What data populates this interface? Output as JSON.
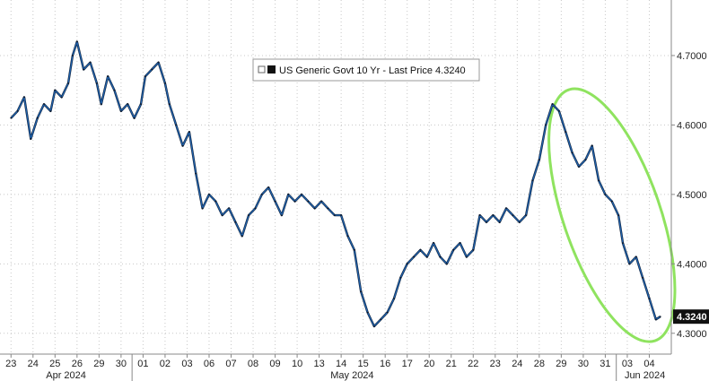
{
  "chart_data": {
    "type": "line",
    "series": [
      {
        "name": "US Generic Govt 10 Yr - Last Price 4.3240",
        "color": "#1f5fa8",
        "values": [
          [
            0.0,
            4.61
          ],
          [
            0.3,
            4.62
          ],
          [
            0.6,
            4.64
          ],
          [
            0.9,
            4.58
          ],
          [
            1.2,
            4.61
          ],
          [
            1.5,
            4.63
          ],
          [
            1.8,
            4.62
          ],
          [
            2.0,
            4.65
          ],
          [
            2.3,
            4.64
          ],
          [
            2.6,
            4.66
          ],
          [
            2.8,
            4.7
          ],
          [
            3.0,
            4.72
          ],
          [
            3.3,
            4.68
          ],
          [
            3.6,
            4.69
          ],
          [
            3.9,
            4.66
          ],
          [
            4.1,
            4.63
          ],
          [
            4.4,
            4.67
          ],
          [
            4.7,
            4.65
          ],
          [
            5.0,
            4.62
          ],
          [
            5.3,
            4.63
          ],
          [
            5.6,
            4.61
          ],
          [
            5.9,
            4.63
          ],
          [
            6.1,
            4.67
          ],
          [
            6.4,
            4.68
          ],
          [
            6.7,
            4.69
          ],
          [
            7.0,
            4.66
          ],
          [
            7.2,
            4.63
          ],
          [
            7.5,
            4.6
          ],
          [
            7.8,
            4.57
          ],
          [
            8.1,
            4.59
          ],
          [
            8.4,
            4.53
          ],
          [
            8.7,
            4.48
          ],
          [
            9.0,
            4.5
          ],
          [
            9.3,
            4.49
          ],
          [
            9.6,
            4.47
          ],
          [
            9.9,
            4.48
          ],
          [
            10.2,
            4.46
          ],
          [
            10.5,
            4.44
          ],
          [
            10.8,
            4.47
          ],
          [
            11.1,
            4.48
          ],
          [
            11.4,
            4.5
          ],
          [
            11.7,
            4.51
          ],
          [
            12.0,
            4.49
          ],
          [
            12.3,
            4.47
          ],
          [
            12.6,
            4.5
          ],
          [
            12.9,
            4.49
          ],
          [
            13.2,
            4.5
          ],
          [
            13.5,
            4.49
          ],
          [
            13.8,
            4.48
          ],
          [
            14.1,
            4.49
          ],
          [
            14.4,
            4.48
          ],
          [
            14.7,
            4.47
          ],
          [
            15.0,
            4.47
          ],
          [
            15.3,
            4.44
          ],
          [
            15.6,
            4.42
          ],
          [
            15.9,
            4.36
          ],
          [
            16.2,
            4.33
          ],
          [
            16.5,
            4.31
          ],
          [
            16.8,
            4.32
          ],
          [
            17.1,
            4.33
          ],
          [
            17.4,
            4.35
          ],
          [
            17.7,
            4.38
          ],
          [
            18.0,
            4.4
          ],
          [
            18.3,
            4.41
          ],
          [
            18.6,
            4.42
          ],
          [
            18.9,
            4.41
          ],
          [
            19.2,
            4.43
          ],
          [
            19.5,
            4.41
          ],
          [
            19.8,
            4.4
          ],
          [
            20.1,
            4.42
          ],
          [
            20.4,
            4.43
          ],
          [
            20.7,
            4.41
          ],
          [
            21.0,
            4.42
          ],
          [
            21.3,
            4.47
          ],
          [
            21.6,
            4.46
          ],
          [
            21.9,
            4.47
          ],
          [
            22.2,
            4.46
          ],
          [
            22.5,
            4.48
          ],
          [
            22.8,
            4.47
          ],
          [
            23.1,
            4.46
          ],
          [
            23.4,
            4.47
          ],
          [
            23.7,
            4.52
          ],
          [
            24.0,
            4.55
          ],
          [
            24.3,
            4.6
          ],
          [
            24.6,
            4.63
          ],
          [
            24.9,
            4.62
          ],
          [
            25.2,
            4.59
          ],
          [
            25.5,
            4.56
          ],
          [
            25.8,
            4.54
          ],
          [
            26.1,
            4.55
          ],
          [
            26.4,
            4.57
          ],
          [
            26.7,
            4.52
          ],
          [
            27.0,
            4.5
          ],
          [
            27.3,
            4.49
          ],
          [
            27.6,
            4.47
          ],
          [
            27.8,
            4.43
          ],
          [
            28.1,
            4.4
          ],
          [
            28.4,
            4.41
          ],
          [
            28.7,
            4.38
          ],
          [
            29.0,
            4.35
          ],
          [
            29.3,
            4.32
          ],
          [
            29.5,
            4.324
          ]
        ]
      }
    ],
    "x_tick_labels": [
      {
        "x": 0,
        "label": "23"
      },
      {
        "x": 1,
        "label": "24"
      },
      {
        "x": 2,
        "label": "25"
      },
      {
        "x": 3,
        "label": "26"
      },
      {
        "x": 4,
        "label": "29"
      },
      {
        "x": 5,
        "label": "30"
      },
      {
        "x": 6,
        "label": "01"
      },
      {
        "x": 7,
        "label": "02"
      },
      {
        "x": 8,
        "label": "03"
      },
      {
        "x": 9,
        "label": "06"
      },
      {
        "x": 10,
        "label": "07"
      },
      {
        "x": 11,
        "label": "08"
      },
      {
        "x": 12,
        "label": "09"
      },
      {
        "x": 13,
        "label": "10"
      },
      {
        "x": 14,
        "label": "13"
      },
      {
        "x": 15,
        "label": "14"
      },
      {
        "x": 16,
        "label": "15"
      },
      {
        "x": 17,
        "label": "16"
      },
      {
        "x": 18,
        "label": "17"
      },
      {
        "x": 19,
        "label": "20"
      },
      {
        "x": 20,
        "label": "21"
      },
      {
        "x": 21,
        "label": "22"
      },
      {
        "x": 22,
        "label": "23"
      },
      {
        "x": 23,
        "label": "24"
      },
      {
        "x": 24,
        "label": "28"
      },
      {
        "x": 25,
        "label": "29"
      },
      {
        "x": 26,
        "label": "30"
      },
      {
        "x": 27,
        "label": "31"
      },
      {
        "x": 28,
        "label": "03"
      },
      {
        "x": 29,
        "label": "04"
      }
    ],
    "month_labels": [
      {
        "x": 2.5,
        "label": "Apr 2024"
      },
      {
        "x": 15.5,
        "label": "May 2024"
      },
      {
        "x": 28.8,
        "label": "Jun 2024"
      }
    ],
    "y_ticks": [
      4.3,
      4.4,
      4.5,
      4.6,
      4.7
    ],
    "y_tick_labels": [
      "4.3000",
      "4.4000",
      "4.5000",
      "4.6000",
      "4.7000"
    ],
    "ylim": [
      4.27,
      4.78
    ],
    "xlim": [
      -0.5,
      30.0
    ],
    "grid": true,
    "last_price_label": "4.3240",
    "last_price_value": 4.324,
    "legend_placement": "top-center",
    "highlight_color": "#8fe35f"
  }
}
